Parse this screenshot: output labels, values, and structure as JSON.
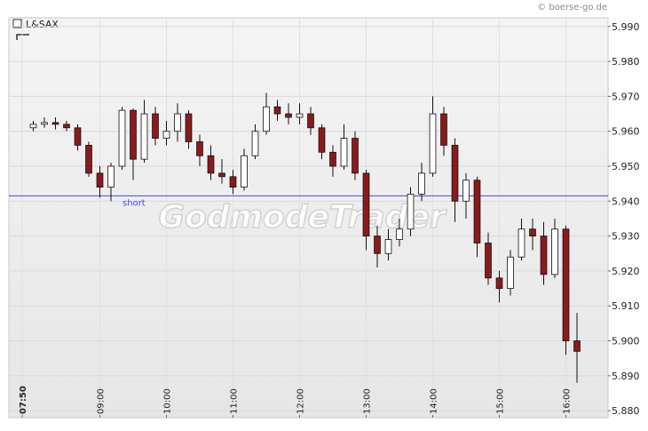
{
  "chart_data": {
    "type": "candlestick",
    "source": "© boerse-go.de",
    "watermark": "GodmodeTrader",
    "xlim": [
      "07:38",
      "16:38"
    ],
    "xticks": [
      "07:50",
      "09:00",
      "10:00",
      "11:00",
      "12:00",
      "13:00",
      "14:00",
      "15:00",
      "16:00"
    ],
    "ylim": [
      5.878,
      5.9925
    ],
    "yticks": [
      {
        "value": 5.88,
        "label": "5.880"
      },
      {
        "value": 5.89,
        "label": "5.890"
      },
      {
        "value": 5.9,
        "label": "5.900"
      },
      {
        "value": 5.91,
        "label": "5.910"
      },
      {
        "value": 5.92,
        "label": "5.920"
      },
      {
        "value": 5.93,
        "label": "5.930"
      },
      {
        "value": 5.94,
        "label": "5.940"
      },
      {
        "value": 5.95,
        "label": "5.950"
      },
      {
        "value": 5.96,
        "label": "5.960"
      },
      {
        "value": 5.97,
        "label": "5.970"
      },
      {
        "value": 5.98,
        "label": "5.980"
      },
      {
        "value": 5.99,
        "label": "5.990"
      }
    ],
    "grid": true,
    "hlines": [
      {
        "value": 5.9415,
        "label": "short",
        "color": "#4a4adf"
      }
    ],
    "x": [
      "08:00",
      "08:10",
      "08:20",
      "08:30",
      "08:40",
      "08:50",
      "09:00",
      "09:10",
      "09:20",
      "09:30",
      "09:40",
      "09:50",
      "10:00",
      "10:10",
      "10:20",
      "10:30",
      "10:40",
      "10:50",
      "11:00",
      "11:10",
      "11:20",
      "11:30",
      "11:40",
      "11:50",
      "12:00",
      "12:10",
      "12:20",
      "12:30",
      "12:40",
      "12:50",
      "13:00",
      "13:10",
      "13:20",
      "13:30",
      "13:40",
      "13:50",
      "14:00",
      "14:10",
      "14:20",
      "14:30",
      "14:40",
      "14:50",
      "15:00",
      "15:10",
      "15:20",
      "15:30",
      "15:40",
      "15:50",
      "16:00",
      "16:10"
    ],
    "series": [
      {
        "name": "L&SAX",
        "up_color": "#ffffff",
        "down_color": "#8b1a1a",
        "open": [
          5.961,
          5.962,
          5.9625,
          5.962,
          5.961,
          5.956,
          5.948,
          5.944,
          5.95,
          5.966,
          5.952,
          5.965,
          5.958,
          5.96,
          5.965,
          5.957,
          5.953,
          5.948,
          5.947,
          5.944,
          5.953,
          5.96,
          5.967,
          5.965,
          5.964,
          5.965,
          5.961,
          5.954,
          5.95,
          5.958,
          5.948,
          5.93,
          5.925,
          5.929,
          5.932,
          5.942,
          5.948,
          5.965,
          5.956,
          5.94,
          5.946,
          5.928,
          5.918,
          5.915,
          5.924,
          5.932,
          5.93,
          5.919,
          5.932,
          5.9
        ],
        "high": [
          5.963,
          5.964,
          5.964,
          5.963,
          5.962,
          5.957,
          5.95,
          5.951,
          5.967,
          5.9665,
          5.969,
          5.967,
          5.963,
          5.968,
          5.966,
          5.959,
          5.956,
          5.952,
          5.949,
          5.955,
          5.962,
          5.971,
          5.969,
          5.968,
          5.968,
          5.967,
          5.962,
          5.956,
          5.962,
          5.96,
          5.949,
          5.933,
          5.932,
          5.935,
          5.944,
          5.951,
          5.97,
          5.967,
          5.958,
          5.948,
          5.947,
          5.931,
          5.92,
          5.926,
          5.935,
          5.935,
          5.934,
          5.935,
          5.933,
          5.908
        ],
        "low": [
          5.96,
          5.961,
          5.9605,
          5.96,
          5.9545,
          5.947,
          5.941,
          5.94,
          5.949,
          5.946,
          5.951,
          5.956,
          5.956,
          5.957,
          5.955,
          5.95,
          5.946,
          5.945,
          5.942,
          5.943,
          5.952,
          5.959,
          5.963,
          5.962,
          5.962,
          5.959,
          5.952,
          5.947,
          5.949,
          5.946,
          5.926,
          5.921,
          5.923,
          5.927,
          5.93,
          5.94,
          5.947,
          5.953,
          5.934,
          5.935,
          5.924,
          5.916,
          5.911,
          5.913,
          5.923,
          5.926,
          5.916,
          5.918,
          5.896,
          5.888
        ],
        "close": [
          5.962,
          5.9625,
          5.962,
          5.961,
          5.956,
          5.948,
          5.944,
          5.95,
          5.966,
          5.952,
          5.965,
          5.958,
          5.96,
          5.965,
          5.957,
          5.953,
          5.948,
          5.947,
          5.944,
          5.953,
          5.96,
          5.967,
          5.965,
          5.964,
          5.965,
          5.961,
          5.954,
          5.95,
          5.958,
          5.948,
          5.93,
          5.925,
          5.929,
          5.932,
          5.942,
          5.948,
          5.965,
          5.956,
          5.94,
          5.946,
          5.928,
          5.918,
          5.915,
          5.924,
          5.932,
          5.93,
          5.919,
          5.932,
          5.9,
          5.897
        ]
      }
    ]
  }
}
